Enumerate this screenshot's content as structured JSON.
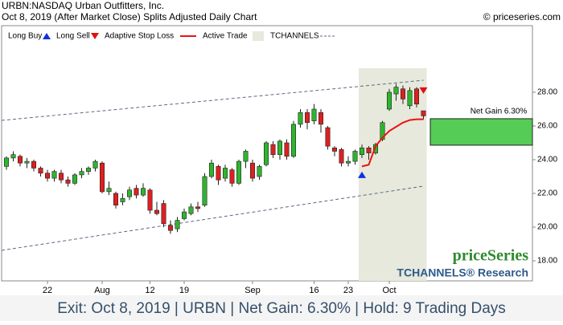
{
  "chart_data": {
    "type": "candlestick",
    "title": "URBN:NASDAQ Urban Outfitters, Inc.",
    "subtitle": "Oct 8, 2019 (After Market Close)  Splits Adjusted Daily Chart",
    "source": "© priceseries.com",
    "caption": "Exit: Oct 8, 2019 | URBN | Net Gain: 6.30% | Hold: 9 Trading Days",
    "watermark": [
      "priceSeries",
      "TCHANNELS® Research"
    ],
    "categories": [
      null,
      null,
      null,
      null,
      null,
      null,
      "22",
      null,
      null,
      null,
      null,
      null,
      null,
      null,
      "Aug",
      null,
      null,
      null,
      null,
      null,
      null,
      "12",
      null,
      null,
      null,
      null,
      "19",
      null,
      null,
      null,
      null,
      null,
      null,
      null,
      null,
      null,
      "Sep",
      null,
      null,
      null,
      null,
      null,
      null,
      null,
      null,
      "16",
      null,
      null,
      null,
      null,
      "23",
      null,
      null,
      null,
      null,
      null,
      "Oct",
      null,
      null,
      null,
      null,
      null
    ],
    "open": [
      23.6,
      24.1,
      24.2,
      23.8,
      23.9,
      23.5,
      23.2,
      22.9,
      23.2,
      22.8,
      22.6,
      23.1,
      23.3,
      23.5,
      23.8,
      22.1,
      22.0,
      21.5,
      21.8,
      22.3,
      21.9,
      22.2,
      21.0,
      21.4,
      20.1,
      19.9,
      20.5,
      20.8,
      21.2,
      21.3,
      23.0,
      23.6,
      22.9,
      23.4,
      22.6,
      23.9,
      23.8,
      23.0,
      23.7,
      24.9,
      24.3,
      25.0,
      24.2,
      26.1,
      26.8,
      26.3,
      26.8,
      25.9,
      24.7,
      24.6,
      23.8,
      23.9,
      24.3,
      24.7,
      24.4,
      25.2,
      27.0,
      27.9,
      28.2,
      27.2,
      28.2,
      26.9
    ],
    "high": [
      24.2,
      24.5,
      24.3,
      24.1,
      24.0,
      23.6,
      23.4,
      23.4,
      23.4,
      23.0,
      23.2,
      23.5,
      23.6,
      24.0,
      23.9,
      22.7,
      22.1,
      22.0,
      22.4,
      22.5,
      22.6,
      22.3,
      21.5,
      21.6,
      20.4,
      20.6,
      21.1,
      21.4,
      21.5,
      23.2,
      24.0,
      23.7,
      23.7,
      23.5,
      24.0,
      24.6,
      24.0,
      23.7,
      25.1,
      25.1,
      25.2,
      25.2,
      26.3,
      27.0,
      27.0,
      27.3,
      27.0,
      26.0,
      24.8,
      24.7,
      24.2,
      24.6,
      24.9,
      24.8,
      25.0,
      26.3,
      28.2,
      28.5,
      28.4,
      28.3,
      28.3,
      26.9
    ],
    "low": [
      23.4,
      23.9,
      23.6,
      23.5,
      23.3,
      23.0,
      22.7,
      22.7,
      22.6,
      22.4,
      22.5,
      22.9,
      23.1,
      23.3,
      22.0,
      21.9,
      21.1,
      21.3,
      21.6,
      21.7,
      21.8,
      20.8,
      20.7,
      20.0,
      19.6,
      19.7,
      20.4,
      20.7,
      20.9,
      21.2,
      22.9,
      22.5,
      22.7,
      22.4,
      22.5,
      23.5,
      22.7,
      22.8,
      23.6,
      24.1,
      24.0,
      24.0,
      24.1,
      25.9,
      25.8,
      26.1,
      25.6,
      24.6,
      24.2,
      23.6,
      23.6,
      23.7,
      24.1,
      24.0,
      24.3,
      25.1,
      26.9,
      27.5,
      27.3,
      27.0,
      27.1,
      26.4
    ],
    "close": [
      24.1,
      24.3,
      23.8,
      23.9,
      23.5,
      23.2,
      22.9,
      23.3,
      22.8,
      22.6,
      23.1,
      23.3,
      23.5,
      23.9,
      22.1,
      22.3,
      21.3,
      21.7,
      22.2,
      21.9,
      22.3,
      21.0,
      20.8,
      20.2,
      19.8,
      20.4,
      20.9,
      21.2,
      21.1,
      23.0,
      23.8,
      22.8,
      23.5,
      22.6,
      23.9,
      24.5,
      22.9,
      23.6,
      25.0,
      24.3,
      25.1,
      24.2,
      26.1,
      26.8,
      26.2,
      27.0,
      26.1,
      24.8,
      24.5,
      23.8,
      23.9,
      24.5,
      24.7,
      24.4,
      24.9,
      26.2,
      28.0,
      28.3,
      27.6,
      28.1,
      27.3,
      26.6
    ],
    "colors": {
      "up": "#2fb52f",
      "down": "#dd2020"
    },
    "ylim": [
      16.81,
      31.95
    ],
    "yticks": [
      {
        "value": 18,
        "label": "18.00"
      },
      {
        "value": 20,
        "label": "20.00"
      },
      {
        "value": 22,
        "label": "22.00"
      },
      {
        "value": 24,
        "label": "24.00"
      },
      {
        "value": 26,
        "label": "26.00"
      },
      {
        "value": 28,
        "label": "28.00"
      }
    ],
    "long_buy": {
      "name": "Long Buy",
      "color": "#1030e0",
      "values": [
        null,
        null,
        null,
        null,
        null,
        null,
        null,
        null,
        null,
        null,
        null,
        null,
        null,
        null,
        null,
        null,
        null,
        null,
        null,
        null,
        null,
        null,
        null,
        null,
        null,
        null,
        null,
        null,
        null,
        null,
        null,
        null,
        null,
        null,
        null,
        null,
        null,
        null,
        null,
        null,
        null,
        null,
        null,
        null,
        null,
        null,
        null,
        null,
        null,
        null,
        null,
        null,
        23.1,
        null,
        null,
        null,
        null,
        null,
        null,
        null,
        null,
        null
      ]
    },
    "long_sell": {
      "name": "Long Sell",
      "color": "#e01010",
      "values": [
        null,
        null,
        null,
        null,
        null,
        null,
        null,
        null,
        null,
        null,
        null,
        null,
        null,
        null,
        null,
        null,
        null,
        null,
        null,
        null,
        null,
        null,
        null,
        null,
        null,
        null,
        null,
        null,
        null,
        null,
        null,
        null,
        null,
        null,
        null,
        null,
        null,
        null,
        null,
        null,
        null,
        null,
        null,
        null,
        null,
        null,
        null,
        null,
        null,
        null,
        null,
        null,
        null,
        null,
        null,
        null,
        null,
        null,
        null,
        null,
        null,
        28.1
      ]
    },
    "stop_loss": {
      "name": "Adaptive Stop Loss",
      "color": "#ee1111",
      "values": [
        null,
        null,
        null,
        null,
        null,
        null,
        null,
        null,
        null,
        null,
        null,
        null,
        null,
        null,
        null,
        null,
        null,
        null,
        null,
        null,
        null,
        null,
        null,
        null,
        null,
        null,
        null,
        null,
        null,
        null,
        null,
        null,
        null,
        null,
        null,
        null,
        null,
        null,
        null,
        null,
        null,
        null,
        null,
        null,
        null,
        null,
        null,
        null,
        null,
        null,
        null,
        null,
        23.6,
        23.7,
        24.8,
        25.3,
        25.7,
        25.95,
        26.2,
        26.35,
        26.4,
        26.4
      ]
    },
    "active_trade": {
      "name": "Active Trade",
      "color": "#e6e9dc"
    },
    "channels": {
      "name": "TCHANNELS",
      "color": "#5a6a80",
      "upper": [
        26.33,
        28.71
      ],
      "lower": [
        18.62,
        22.43
      ]
    },
    "net_gain": {
      "label": "Net Gain 6.30%",
      "entry": 24.86,
      "exit": 26.43,
      "color": "#55cc55"
    }
  }
}
